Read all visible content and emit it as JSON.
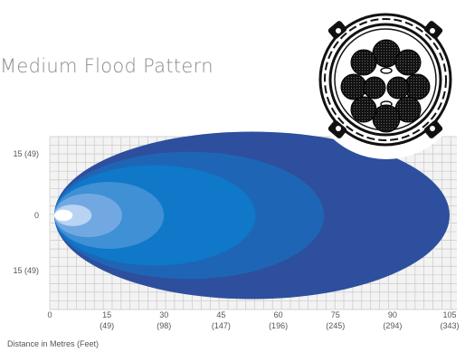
{
  "chart_data": {
    "type": "beam-pattern",
    "title": "Medium Flood Pattern",
    "xlabel": "Distance in Metres (Feet)",
    "x_ticks": [
      {
        "metres": "0",
        "feet": ""
      },
      {
        "metres": "15",
        "feet": "(49)"
      },
      {
        "metres": "30",
        "feet": "(98)"
      },
      {
        "metres": "45",
        "feet": "(147)"
      },
      {
        "metres": "60",
        "feet": "(196)"
      },
      {
        "metres": "75",
        "feet": "(245)"
      },
      {
        "metres": "90",
        "feet": "(294)"
      },
      {
        "metres": "105",
        "feet": "(343)"
      }
    ],
    "y_ticks": [
      "15 (49)",
      "0",
      "15 (49)"
    ],
    "xlim": [
      0,
      105
    ],
    "ylim": [
      -24,
      24
    ],
    "grid": true,
    "beam_zones": [
      {
        "color": "#2e4f9e",
        "reach_m": 105,
        "half_width_m": 25
      },
      {
        "color": "#1e66b5",
        "reach_m": 72,
        "half_width_m": 19
      },
      {
        "color": "#0f78c8",
        "reach_m": 54,
        "half_width_m": 15
      },
      {
        "color": "#3f90d4",
        "reach_m": 30,
        "half_width_m": 10
      },
      {
        "color": "#72a8e2",
        "reach_m": 19,
        "half_width_m": 6.5
      },
      {
        "color": "#b9d3f2",
        "reach_m": 11,
        "half_width_m": 3.2
      },
      {
        "color": "#ffffff",
        "reach_m": 6,
        "half_width_m": 1.7
      }
    ]
  },
  "product_image": {
    "icon": "led-work-light-front-view-icon"
  }
}
